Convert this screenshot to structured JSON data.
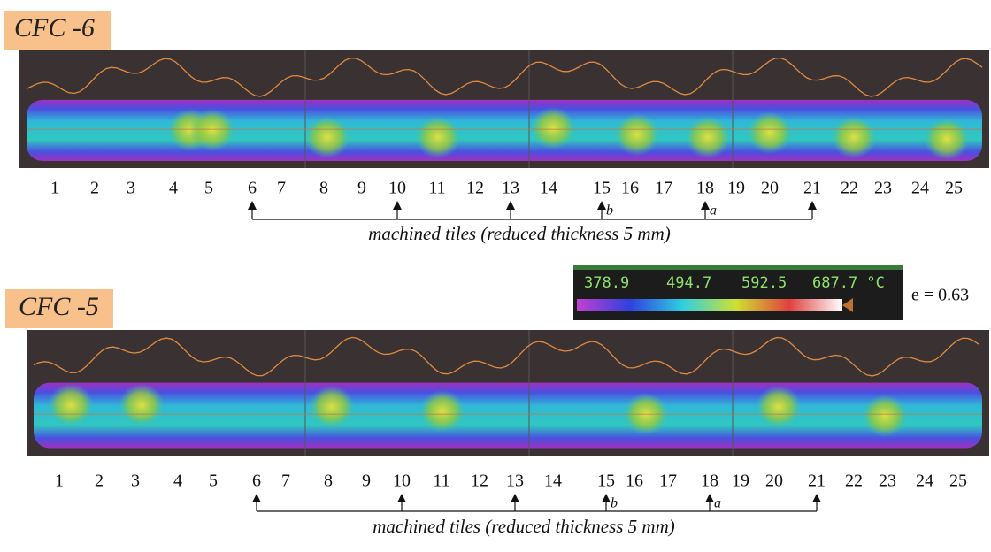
{
  "panels": [
    {
      "label": "CFC -6",
      "tile_numbers": [
        "1",
        "2",
        "3",
        "4",
        "5",
        "6",
        "7",
        "8",
        "9",
        "10",
        "11",
        "12",
        "13",
        "14",
        "15",
        "16",
        "17",
        "18",
        "19",
        "20",
        "21",
        "22",
        "23",
        "24",
        "25"
      ],
      "annotation": "machined tiles (reduced thickness 5 mm)",
      "markers": [
        "b",
        "a"
      ]
    },
    {
      "label": "CFC -5",
      "tile_numbers": [
        "1",
        "2",
        "3",
        "4",
        "5",
        "6",
        "7",
        "8",
        "9",
        "10",
        "11",
        "12",
        "13",
        "14",
        "15",
        "16",
        "17",
        "18",
        "19",
        "20",
        "21",
        "22",
        "23",
        "24",
        "25"
      ],
      "annotation": "machined tiles (reduced thickness 5 mm)",
      "markers": [
        "b",
        "a"
      ]
    }
  ],
  "colorbar": {
    "ticks": [
      "378.9",
      "494.7",
      "592.5",
      "687.7 °C"
    ],
    "emissivity": "e = 0.63"
  }
}
